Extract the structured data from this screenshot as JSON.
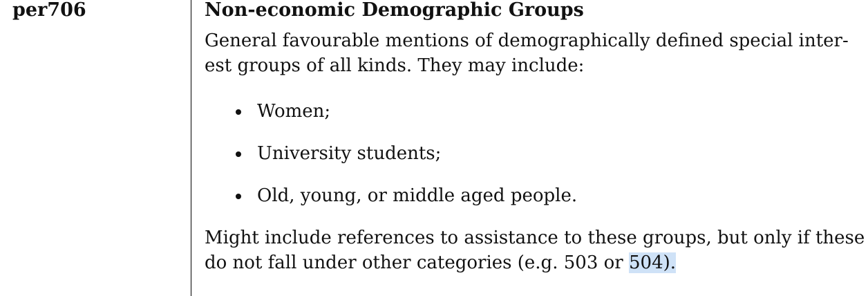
{
  "entry": {
    "code": "per706",
    "title": "Non-economic Demographic Groups",
    "description_line1": "General favourable mentions of demographically defined special inter-",
    "description_line2": "est groups of all kinds. They may include:",
    "bullets": [
      "Women;",
      "University students;",
      "Old, young, or middle aged people."
    ],
    "note_line1": "Might include references to assistance to these groups, but only if these",
    "note_line2_before": "do not fall under other categories (e.g. 503 or ",
    "note_line2_highlight": "504).",
    "highlight_color": "#cfe2f7"
  }
}
